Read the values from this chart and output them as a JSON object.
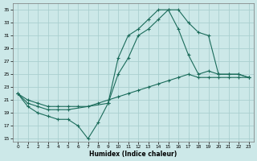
{
  "xlabel": "Humidex (Indice chaleur)",
  "bg_color": "#cce8e8",
  "grid_color": "#aacfcf",
  "line_color": "#1a6b5a",
  "xlim": [
    -0.5,
    23.5
  ],
  "ylim": [
    14.5,
    36
  ],
  "yticks": [
    15,
    17,
    19,
    21,
    23,
    25,
    27,
    29,
    31,
    33,
    35
  ],
  "xticks": [
    0,
    1,
    2,
    3,
    4,
    5,
    6,
    7,
    8,
    9,
    10,
    11,
    12,
    13,
    14,
    15,
    16,
    17,
    18,
    19,
    20,
    21,
    22,
    23
  ],
  "line1_x": [
    0,
    1,
    2,
    3,
    4,
    5,
    6,
    7,
    8,
    9,
    10,
    11,
    12,
    13,
    14,
    15,
    16,
    17,
    18,
    19,
    20,
    21,
    22,
    23
  ],
  "line1_y": [
    22,
    20,
    19,
    18.5,
    18,
    18,
    17,
    15,
    17.5,
    20.5,
    27.5,
    31,
    32,
    33.5,
    35,
    35,
    32,
    28,
    25,
    25.5,
    25,
    25,
    25,
    24.5
  ],
  "line2_x": [
    0,
    1,
    2,
    3,
    4,
    5,
    9,
    10,
    11,
    12,
    13,
    14,
    15,
    16,
    17,
    18,
    19,
    20,
    21,
    22,
    23
  ],
  "line2_y": [
    22,
    20.5,
    20,
    19.5,
    19.5,
    19.5,
    20.5,
    25,
    27.5,
    31,
    32,
    33.5,
    35,
    35,
    33,
    31.5,
    31,
    25,
    25,
    25,
    24.5
  ],
  "line3_x": [
    0,
    1,
    2,
    3,
    4,
    5,
    6,
    7,
    8,
    9,
    10,
    11,
    12,
    13,
    14,
    15,
    16,
    17,
    18,
    19,
    20,
    21,
    22,
    23
  ],
  "line3_y": [
    22,
    21,
    20.5,
    20,
    20,
    20,
    20,
    20,
    20.5,
    21,
    21.5,
    22,
    22.5,
    23,
    23.5,
    24,
    24.5,
    25,
    24.5,
    24.5,
    24.5,
    24.5,
    24.5,
    24.5
  ]
}
